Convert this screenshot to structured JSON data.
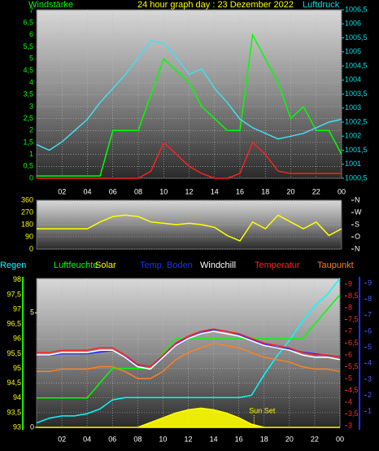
{
  "chart_data": [
    {
      "type": "line",
      "title": "24 hour graph day : 23 Dezember 2022",
      "ylabel": "Windstärke",
      "y2label": "Luftdruck",
      "x": [
        0,
        1,
        2,
        3,
        4,
        5,
        6,
        7,
        8,
        9,
        10,
        11,
        12,
        13,
        14,
        15,
        16,
        17,
        18,
        19,
        20,
        21,
        22,
        23,
        24
      ],
      "xlim": [
        0,
        24
      ],
      "xticks": [
        {
          "value": 2,
          "label": "02"
        },
        {
          "value": 4,
          "label": "04"
        },
        {
          "value": 6,
          "label": "06"
        },
        {
          "value": 8,
          "label": "08"
        },
        10,
        12,
        14,
        16,
        18,
        20,
        22,
        {
          "value": 24,
          "label": "00"
        }
      ],
      "ylim": [
        0,
        7.05
      ],
      "ycolor": "#00ff00",
      "yticks": [
        0,
        {
          "value": 0.5,
          "label": "0,5"
        },
        1,
        {
          "value": 1.5,
          "label": "1,5"
        },
        2,
        {
          "value": 2.5,
          "label": "2,5"
        },
        3,
        {
          "value": 3.5,
          "label": "3,5"
        },
        4,
        {
          "value": 4.5,
          "label": "4,5"
        },
        5,
        {
          "value": 5.5,
          "label": "5,5"
        },
        6,
        {
          "value": 6.5,
          "label": "6,5"
        },
        7
      ],
      "y2lim": [
        1000.5,
        1006.5
      ],
      "y2color": "#00e0e0",
      "y2ticks": [
        {
          "value": 1000.5,
          "label": "1000,5"
        },
        1001,
        {
          "value": 1001.5,
          "label": "1001,5"
        },
        1002,
        {
          "value": 1002.5,
          "label": "1002,5"
        },
        1003,
        {
          "value": 1003.5,
          "label": "1003,5"
        },
        1004,
        {
          "value": 1004.5,
          "label": "1004,5"
        },
        1005,
        {
          "value": 1005.5,
          "label": "1005,5"
        },
        1006,
        {
          "value": 1006.5,
          "label": "1006,5"
        }
      ],
      "grid": true,
      "series": [
        {
          "color": "#00ff00",
          "axis": "y",
          "values": [
            0.1,
            0.1,
            0.1,
            0.1,
            0.1,
            0.1,
            2,
            2,
            2,
            3.5,
            5,
            4.5,
            4,
            3,
            2.5,
            2,
            2,
            6,
            5,
            4,
            2.5,
            3,
            2,
            2,
            1
          ]
        },
        {
          "color": "#ff2020",
          "axis": "y",
          "values": [
            0,
            0,
            0,
            0,
            0,
            0,
            0,
            0,
            0,
            0.3,
            1.5,
            1,
            0.5,
            0.2,
            0,
            0,
            0.2,
            1.5,
            1,
            0.3,
            0.2,
            0.2,
            0.2,
            0.2,
            0.2
          ]
        },
        {
          "color": "#40e0f0",
          "axis": "y2",
          "values": [
            1001.7,
            1001.5,
            1001.8,
            1002.2,
            1002.6,
            1003.2,
            1003.7,
            1004.2,
            1004.8,
            1005.4,
            1005.3,
            1004.8,
            1004.2,
            1004.4,
            1003.7,
            1003.2,
            1002.6,
            1002.3,
            1002.1,
            1001.9,
            1002.0,
            1002.1,
            1002.3,
            1002.5,
            1002.6
          ]
        }
      ]
    },
    {
      "type": "line",
      "x": [
        0,
        1,
        2,
        3,
        4,
        5,
        6,
        7,
        8,
        9,
        10,
        11,
        12,
        13,
        14,
        15,
        16,
        17,
        18,
        19,
        20,
        21,
        22,
        23,
        24
      ],
      "xlim": [
        0,
        24
      ],
      "ylim": [
        0,
        360
      ],
      "ycolor": "#ffff00",
      "yticks": [
        0,
        90,
        180,
        270,
        360
      ],
      "y2lim": [
        0,
        360
      ],
      "y2color": "#ffffff",
      "y2ticks": [
        {
          "value": 0,
          "label": "N"
        },
        {
          "value": 90,
          "label": "O"
        },
        {
          "value": 180,
          "label": "S"
        },
        {
          "value": 270,
          "label": "W"
        },
        {
          "value": 360,
          "label": "N"
        }
      ],
      "grid": true,
      "series": [
        {
          "color": "#ffff00",
          "axis": "y",
          "values": [
            150,
            150,
            150,
            150,
            150,
            200,
            240,
            250,
            240,
            200,
            190,
            180,
            190,
            180,
            160,
            100,
            60,
            200,
            150,
            250,
            200,
            150,
            200,
            100,
            150
          ]
        }
      ]
    },
    {
      "type": "line",
      "annotation": "Sun Set",
      "x": [
        0,
        1,
        2,
        3,
        4,
        5,
        6,
        7,
        8,
        9,
        10,
        11,
        12,
        13,
        14,
        15,
        16,
        17,
        18,
        19,
        20,
        21,
        22,
        23,
        24
      ],
      "xlim": [
        0,
        24
      ],
      "xticks": [
        {
          "value": 2,
          "label": "02"
        },
        {
          "value": 4,
          "label": "04"
        },
        {
          "value": 6,
          "label": "06"
        },
        {
          "value": 8,
          "label": "08"
        },
        10,
        12,
        14,
        16,
        18,
        20,
        22,
        {
          "value": 24,
          "label": "00"
        }
      ],
      "ylim": [
        93,
        98.05
      ],
      "ycolor": "#ffff00",
      "yticks": [
        93,
        {
          "value": 93.5,
          "label": "93,5"
        },
        94,
        {
          "value": 94.5,
          "label": "94,5"
        },
        95,
        {
          "value": 95.5,
          "label": "95,5"
        },
        96,
        {
          "value": 96.5,
          "label": "96,5"
        },
        97,
        {
          "value": 97.5,
          "label": "97,5"
        },
        98
      ],
      "y2lim": [
        2.93,
        9.24
      ],
      "y2color": "#ff3030",
      "y2ticks": [
        3,
        {
          "value": 3.5,
          "label": "3,5"
        },
        4,
        {
          "value": 4.5,
          "label": "4,5"
        },
        5,
        {
          "value": 5.5,
          "label": "5,5"
        },
        6,
        {
          "value": 6.5,
          "label": "6,5"
        },
        7,
        {
          "value": 7.5,
          "label": "7,5"
        },
        8,
        {
          "value": 8.5,
          "label": "8,5"
        },
        9
      ],
      "y3lim": [
        0,
        9.3
      ],
      "y3color": "#4060ff",
      "y3ticks": [
        1,
        2,
        3,
        4,
        5,
        6,
        7,
        8,
        9
      ],
      "y4lim": [
        0,
        6.5
      ],
      "y4color": "#ffffc0",
      "y4ticks": [
        0,
        5
      ],
      "grid": true,
      "series": [
        {
          "name": "Regen",
          "color": "#00ffff",
          "axis": "y4",
          "values": [
            0.2,
            0.4,
            0.5,
            0.5,
            0.6,
            0.8,
            1.2,
            1.3,
            1.3,
            1.3,
            1.3,
            1.3,
            1.3,
            1.3,
            1.3,
            1.3,
            1.3,
            1.4,
            2.3,
            3.1,
            3.8,
            4.6,
            5.3,
            5.8,
            6.5
          ]
        },
        {
          "name": "Luftfeuchte",
          "color": "#00ff00",
          "axis": "y",
          "values": [
            94,
            94,
            94,
            94,
            94,
            94.5,
            95,
            95,
            95,
            95,
            95.5,
            96,
            96,
            96,
            96,
            96,
            96,
            96,
            96,
            96,
            96,
            96,
            96.5,
            97,
            97.5
          ]
        },
        {
          "name": "Solar",
          "color": "#ffff00",
          "axis": "y3",
          "area": true,
          "values": [
            0,
            0,
            0,
            0,
            0,
            0,
            0,
            0,
            0,
            0.3,
            0.6,
            0.9,
            1.1,
            1.2,
            1.1,
            0.9,
            0.6,
            0.2,
            0,
            0,
            0,
            0,
            0,
            0,
            0
          ]
        },
        {
          "name": "Temp. Boden",
          "color": "#2030ff",
          "axis": "y3",
          "values": [
            4.5,
            4.5,
            4.6,
            4.6,
            4.6,
            4.7,
            4.8,
            4.4,
            3.9,
            3.8,
            4.4,
            5.2,
            5.6,
            5.9,
            6.1,
            6.0,
            5.8,
            5.5,
            5.2,
            5.0,
            4.9,
            4.7,
            4.6,
            4.5,
            4.4
          ]
        },
        {
          "name": "Windchill",
          "color": "#ffffff",
          "axis": "y2",
          "values": [
            6.0,
            6.0,
            6.1,
            6.1,
            6.1,
            6.2,
            6.2,
            5.9,
            5.5,
            5.4,
            5.9,
            6.4,
            6.7,
            6.9,
            7.0,
            6.9,
            6.8,
            6.6,
            6.4,
            6.3,
            6.2,
            6.0,
            5.9,
            5.9,
            5.8
          ]
        },
        {
          "name": "Temperatur",
          "color": "#ff2020",
          "axis": "y2",
          "values": [
            6.1,
            6.1,
            6.2,
            6.2,
            6.2,
            6.3,
            6.3,
            6.0,
            5.6,
            5.5,
            6.0,
            6.5,
            6.8,
            7.0,
            7.1,
            7.0,
            6.9,
            6.7,
            6.5,
            6.4,
            6.3,
            6.1,
            6.0,
            6.0,
            5.9
          ]
        },
        {
          "name": "Taupunkt",
          "color": "#ff8020",
          "axis": "y2",
          "values": [
            5.3,
            5.3,
            5.4,
            5.4,
            5.4,
            5.5,
            5.5,
            5.3,
            5.0,
            5.0,
            5.3,
            5.8,
            6.1,
            6.3,
            6.5,
            6.4,
            6.3,
            6.1,
            5.9,
            5.8,
            5.7,
            5.5,
            5.4,
            5.4,
            5.3
          ]
        }
      ]
    }
  ]
}
